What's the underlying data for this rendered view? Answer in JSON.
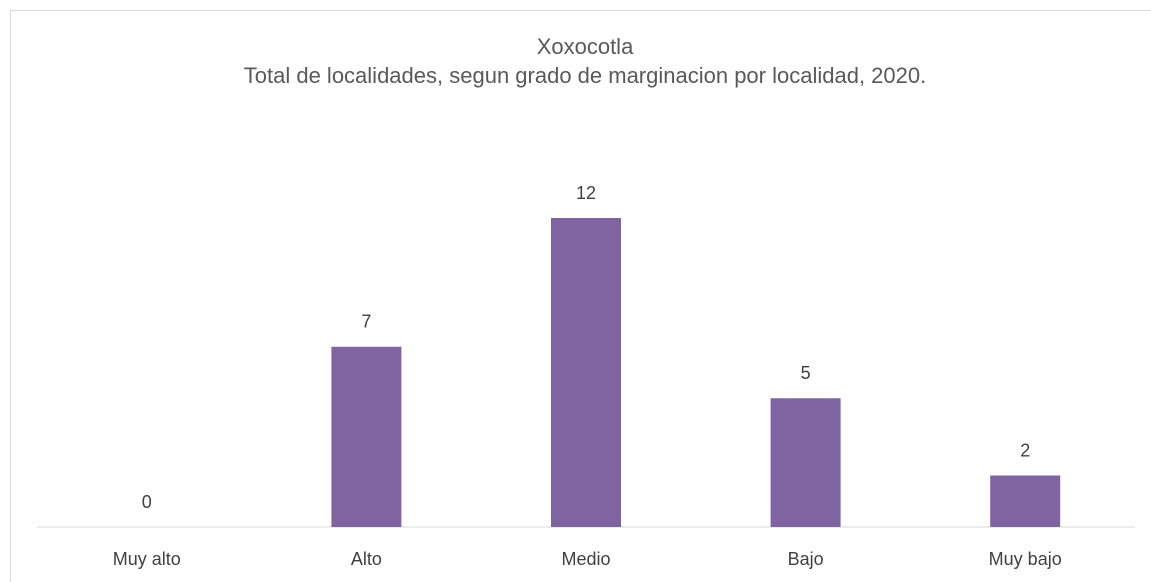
{
  "chart_data": {
    "type": "bar",
    "title": "Xoxocotla",
    "subtitle": "Total de localidades, segun grado de marginacion por localidad, 2020.",
    "categories": [
      "Muy alto",
      "Alto",
      "Medio",
      "Bajo",
      "Muy bajo"
    ],
    "values": [
      0,
      7,
      12,
      5,
      2
    ],
    "color": "#8064a2",
    "data_labels": true
  }
}
